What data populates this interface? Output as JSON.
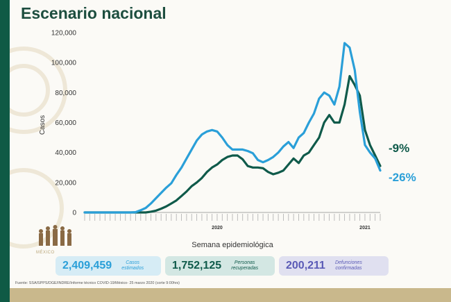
{
  "title": "Escenario nacional",
  "chart_data": {
    "type": "line",
    "title": "",
    "xlabel": "Semana epidemiológica",
    "ylabel": "Casos",
    "ylim": [
      0,
      120000
    ],
    "yticks": [
      0,
      20000,
      40000,
      60000,
      80000,
      100000,
      120000
    ],
    "ytick_labels": [
      "0",
      "20,000",
      "40,000",
      "60,000",
      "80,000",
      "100,000",
      "120,000"
    ],
    "year_labels": [
      {
        "label": "2020",
        "week": 27
      },
      {
        "label": "2021",
        "week": 56
      }
    ],
    "x": [
      1,
      2,
      3,
      4,
      5,
      6,
      7,
      8,
      9,
      10,
      11,
      12,
      13,
      14,
      15,
      16,
      17,
      18,
      19,
      20,
      21,
      22,
      23,
      24,
      25,
      26,
      27,
      28,
      29,
      30,
      31,
      32,
      33,
      34,
      35,
      36,
      37,
      38,
      39,
      40,
      41,
      42,
      43,
      44,
      45,
      46,
      47,
      48,
      49,
      50,
      51,
      52,
      53,
      54,
      55,
      56,
      57,
      58,
      59
    ],
    "grid": false,
    "series": [
      {
        "color": "#2a9fd8",
        "values": [
          0,
          0,
          0,
          0,
          0,
          0,
          0,
          0,
          0,
          0,
          200,
          1500,
          3000,
          6000,
          9500,
          13000,
          16500,
          19500,
          25000,
          30000,
          36000,
          42000,
          48000,
          52000,
          54000,
          55000,
          54000,
          50000,
          45000,
          42000,
          42000,
          42000,
          41000,
          39500,
          35000,
          33500,
          35000,
          37000,
          40000,
          44000,
          47000,
          43000,
          50000,
          53000,
          60000,
          66000,
          76000,
          80000,
          78000,
          72000,
          84000,
          113000,
          110000,
          95000,
          67000,
          45000,
          40000,
          36000,
          28000
        ]
      },
      {
        "color": "#0f5a4a",
        "values": [
          0,
          0,
          0,
          0,
          0,
          0,
          0,
          0,
          0,
          0,
          0,
          0,
          0,
          500,
          1200,
          2500,
          4000,
          6000,
          8000,
          11000,
          14000,
          17500,
          20000,
          23000,
          27000,
          30000,
          32000,
          35000,
          37000,
          38000,
          38000,
          35500,
          31000,
          30000,
          30000,
          29500,
          27000,
          25500,
          26500,
          28000,
          32000,
          36000,
          33000,
          38000,
          40000,
          45000,
          50000,
          60000,
          65000,
          60000,
          60000,
          72000,
          91000,
          85000,
          78000,
          55000,
          45000,
          38000,
          31000
        ]
      }
    ],
    "annotations": [
      {
        "label": "-9%",
        "series": 1
      },
      {
        "label": "-26%",
        "series": 0
      }
    ]
  },
  "stats": {
    "cases": {
      "value": "2,409,459",
      "label": "Casos\nestimados"
    },
    "recovered": {
      "value": "1,752,125",
      "label": "Personas\nrecuperadas"
    },
    "deaths": {
      "value": "200,211",
      "label": "Defunciones\nconfirmadas"
    }
  },
  "logo_text": "MÉXICO",
  "source": "Fuente: SSA/SPPS/DGE/INDRE/Informe técnico COVID-19/México- 25 marzo 2020 (corte 9:00hrs)",
  "colors": {
    "cases": "#2a9fd8",
    "recovered": "#0f5a4a",
    "deaths": "#5a5ab6",
    "accent": "#0f5a45"
  }
}
